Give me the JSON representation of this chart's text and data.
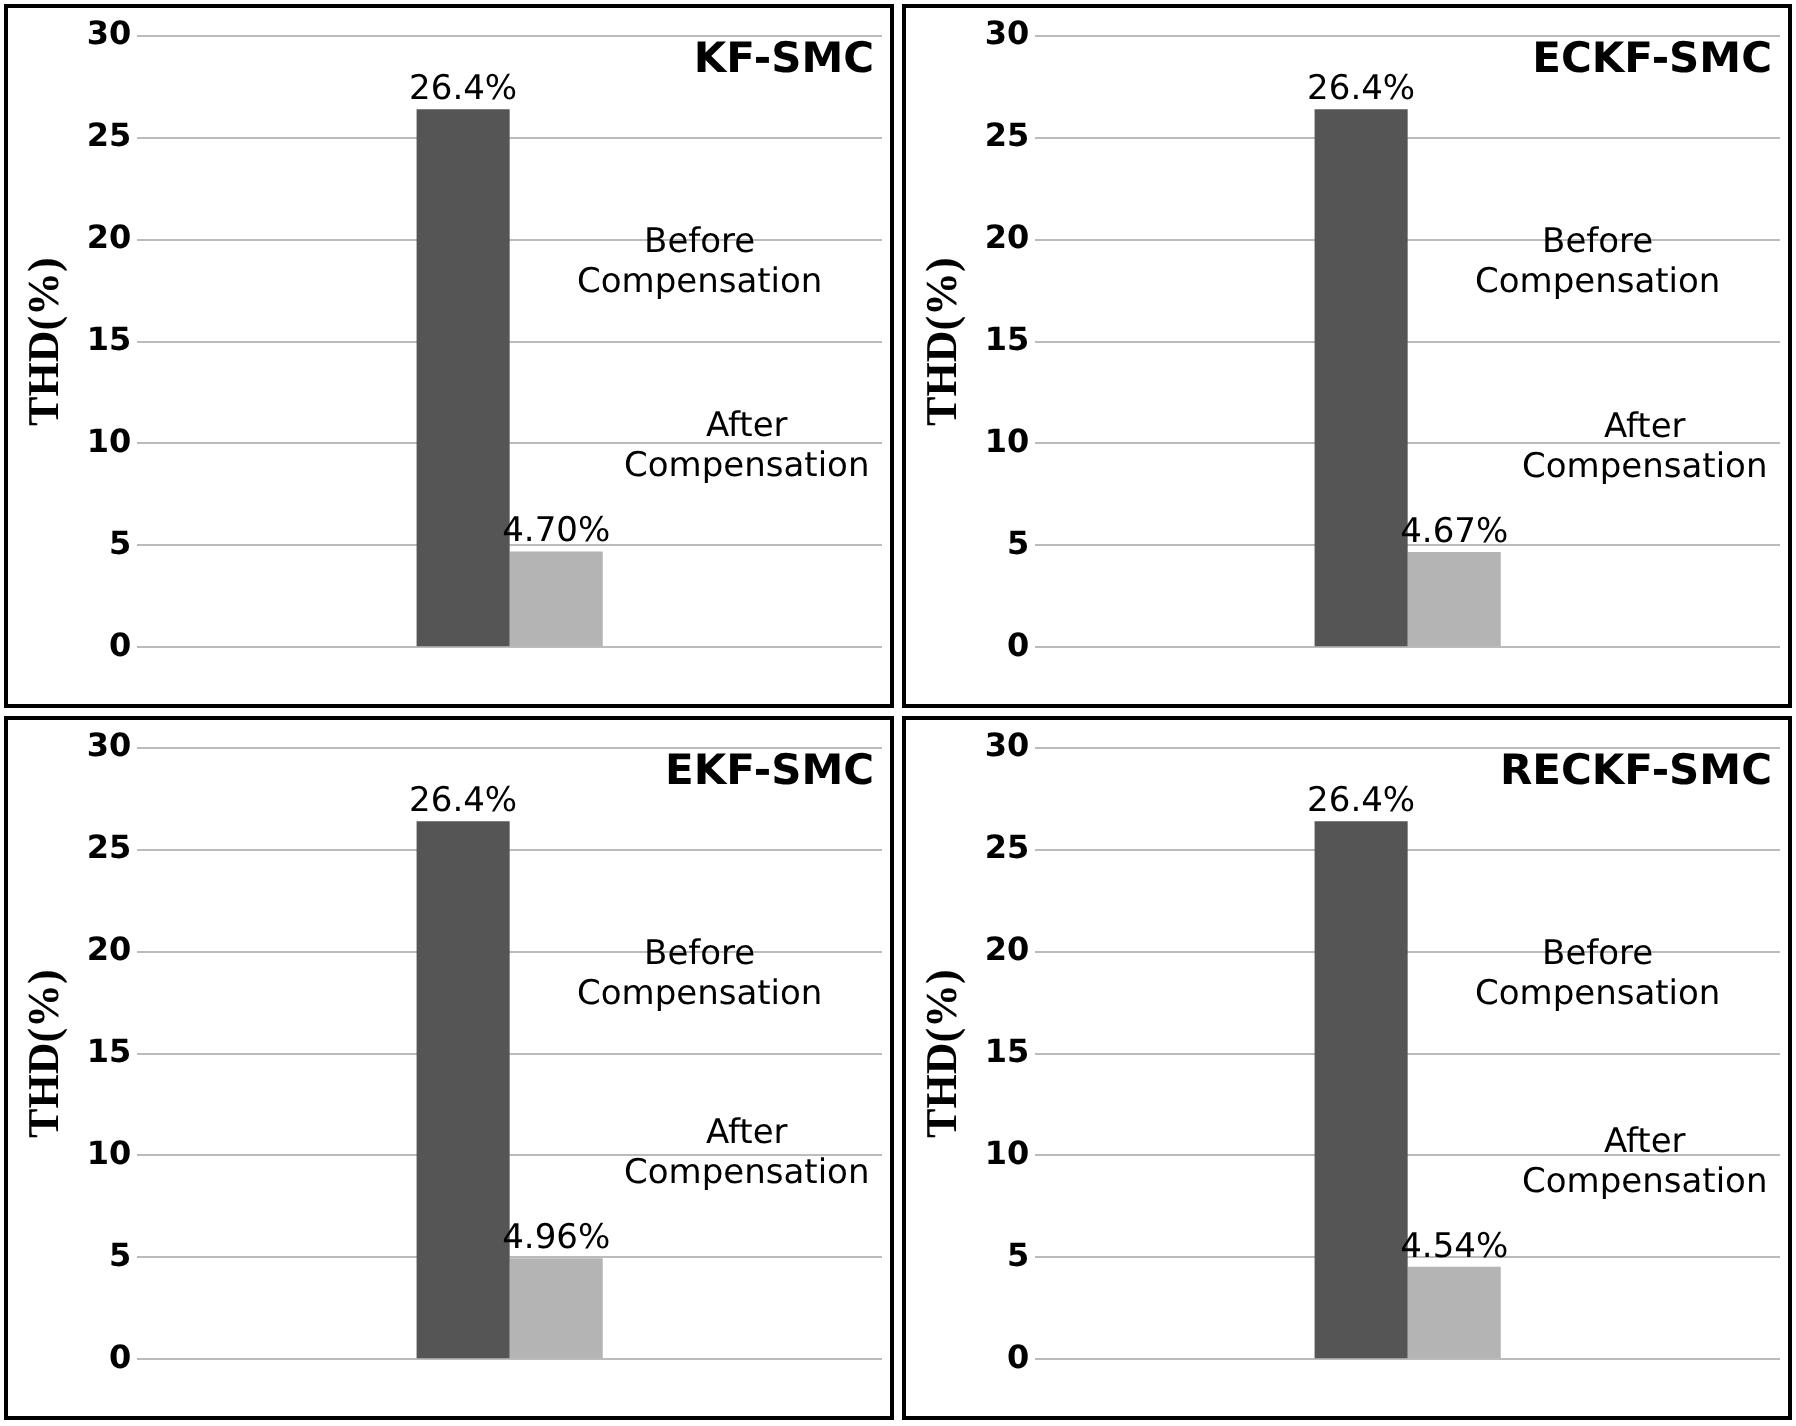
{
  "chart_data": [
    {
      "type": "bar",
      "title": "KF-SMC",
      "ylabel": "THD(%)",
      "categories": [
        null
      ],
      "ylim": [
        0,
        30
      ],
      "yticks": [
        0,
        5,
        10,
        15,
        20,
        25,
        30
      ],
      "grid": "y",
      "legend": false,
      "series": [
        {
          "name": "Before Compensation",
          "color": "#555555",
          "values": [
            26.4
          ],
          "value_labels": [
            "26.4%"
          ]
        },
        {
          "name": "After Compensation",
          "color": "#b4b4b4",
          "values": [
            4.7
          ],
          "value_labels": [
            "4.70%"
          ]
        }
      ]
    },
    {
      "type": "bar",
      "title": "ECKF-SMC",
      "ylabel": "THD(%)",
      "categories": [
        null
      ],
      "ylim": [
        0,
        30
      ],
      "yticks": [
        0,
        5,
        10,
        15,
        20,
        25,
        30
      ],
      "grid": "y",
      "legend": false,
      "series": [
        {
          "name": "Before Compensation",
          "color": "#555555",
          "values": [
            26.4
          ],
          "value_labels": [
            "26.4%"
          ]
        },
        {
          "name": "After Compensation",
          "color": "#b4b4b4",
          "values": [
            4.67
          ],
          "value_labels": [
            "4.67%"
          ]
        }
      ]
    },
    {
      "type": "bar",
      "title": "EKF-SMC",
      "ylabel": "THD(%)",
      "categories": [
        null
      ],
      "ylim": [
        0,
        30
      ],
      "yticks": [
        0,
        5,
        10,
        15,
        20,
        25,
        30
      ],
      "grid": "y",
      "legend": false,
      "series": [
        {
          "name": "Before Compensation",
          "color": "#555555",
          "values": [
            26.4
          ],
          "value_labels": [
            "26.4%"
          ]
        },
        {
          "name": "After Compensation",
          "color": "#b4b4b4",
          "values": [
            4.96
          ],
          "value_labels": [
            "4.96%"
          ]
        }
      ]
    },
    {
      "type": "bar",
      "title": "RECKF-SMC",
      "ylabel": "THD(%)",
      "categories": [
        null
      ],
      "ylim": [
        0,
        30
      ],
      "yticks": [
        0,
        5,
        10,
        15,
        20,
        25,
        30
      ],
      "grid": "y",
      "legend": false,
      "series": [
        {
          "name": "Before Compensation",
          "color": "#555555",
          "values": [
            26.4
          ],
          "value_labels": [
            "26.4%"
          ]
        },
        {
          "name": "After Compensation",
          "color": "#b4b4b4",
          "values": [
            4.54
          ],
          "value_labels": [
            "4.54%"
          ]
        }
      ]
    }
  ]
}
